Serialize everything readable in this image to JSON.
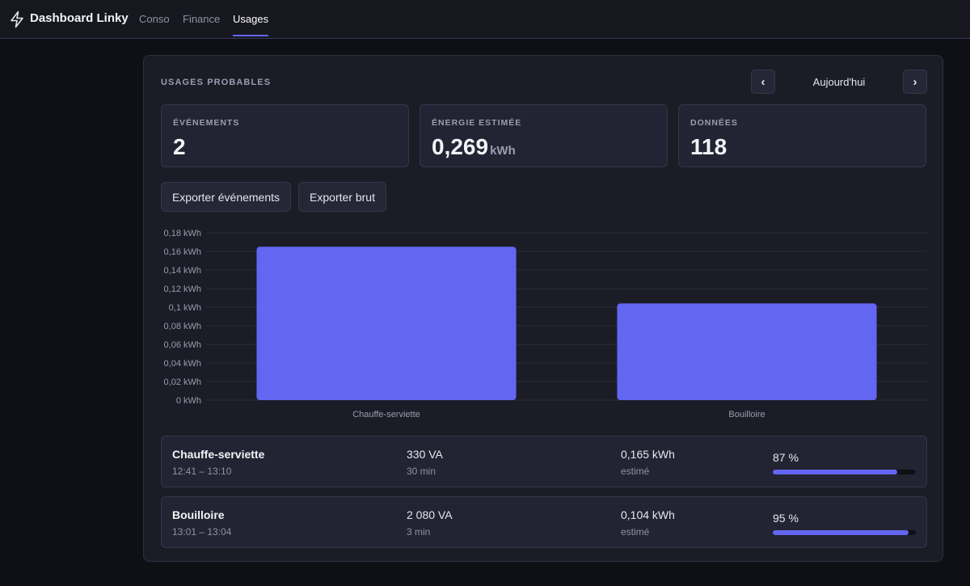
{
  "header": {
    "brand": "Dashboard Linky",
    "nav": [
      {
        "label": "Conso",
        "active": false
      },
      {
        "label": "Finance",
        "active": false
      },
      {
        "label": "Usages",
        "active": true
      }
    ]
  },
  "panel": {
    "title": "USAGES PROBABLES",
    "date_label": "Aujourd'hui",
    "prev_label": "‹",
    "next_label": "›"
  },
  "stats": [
    {
      "label": "ÉVÉNEMENTS",
      "value": "2",
      "unit": ""
    },
    {
      "label": "ÉNERGIE ESTIMÉE",
      "value": "0,269",
      "unit": "kWh"
    },
    {
      "label": "DONNÉES",
      "value": "118",
      "unit": ""
    }
  ],
  "actions": {
    "export_events": "Exporter événements",
    "export_raw": "Exporter brut"
  },
  "chart_data": {
    "type": "bar",
    "categories": [
      "Chauffe-serviette",
      "Bouilloire"
    ],
    "values": [
      0.165,
      0.104
    ],
    "ylim": [
      0,
      0.18
    ],
    "yticks": [
      0,
      0.02,
      0.04,
      0.06,
      0.08,
      0.1,
      0.12,
      0.14,
      0.16,
      0.18
    ],
    "ytick_labels": [
      "0 kWh",
      "0,02 kWh",
      "0,04 kWh",
      "0,06 kWh",
      "0,08 kWh",
      "0,1 kWh",
      "0,12 kWh",
      "0,14 kWh",
      "0,16 kWh",
      "0,18 kWh"
    ],
    "grid": true,
    "bar_color": "#6366f1"
  },
  "usages": [
    {
      "name": "Chauffe-serviette",
      "time": "12:41 – 13:10",
      "power": "330 VA",
      "duration": "30 min",
      "energy": "0,165 kWh",
      "energy_note": "estimé",
      "confidence_label": "87 %",
      "confidence": 0.87
    },
    {
      "name": "Bouilloire",
      "time": "13:01 – 13:04",
      "power": "2 080 VA",
      "duration": "3 min",
      "energy": "0,104 kWh",
      "energy_note": "estimé",
      "confidence_label": "95 %",
      "confidence": 0.95
    }
  ],
  "colors": {
    "accent": "#6366f1",
    "background": "#0f1015",
    "panel": "#1b1c26",
    "card": "#232433"
  }
}
